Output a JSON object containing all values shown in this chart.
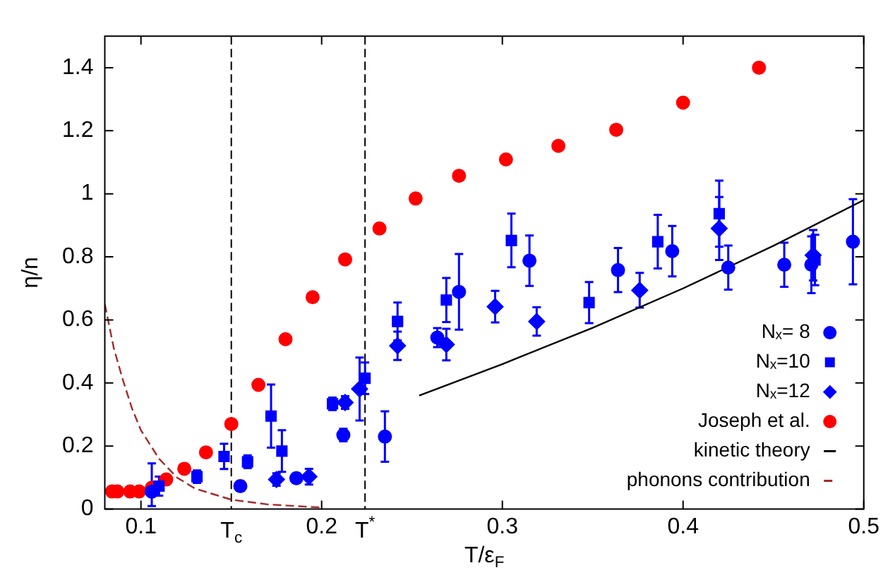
{
  "chart_data": {
    "type": "scatter",
    "xlabel": "T/ε$_{F}$",
    "ylabel": "η/n",
    "xlim": [
      0.08,
      0.5
    ],
    "ylim": [
      0,
      1.5
    ],
    "xticks": [
      0.1,
      0.2,
      0.3,
      0.4,
      0.5
    ],
    "yticks": [
      0,
      0.2,
      0.4,
      0.6,
      0.8,
      1,
      1.2,
      1.4
    ],
    "grid": false,
    "legend": "bottom right",
    "series": [
      {
        "name": "Nₓ= 8",
        "marker": "circle",
        "color": "#0000ff",
        "x": [
          0.106,
          0.155,
          0.186,
          0.212,
          0.235,
          0.264,
          0.276,
          0.315,
          0.364,
          0.394,
          0.425,
          0.456,
          0.471,
          0.494
        ],
        "values": [
          0.055,
          0.073,
          0.098,
          0.235,
          0.23,
          0.544,
          0.689,
          0.788,
          0.758,
          0.818,
          0.766,
          0.775,
          0.775,
          0.848
        ],
        "errors": [
          [
            0.01,
            0.145
          ],
          0.015,
          0.015,
          0.02,
          0.08,
          0.03,
          0.12,
          0.08,
          0.07,
          0.08,
          0.07,
          0.07,
          0.09,
          0.135
        ]
      },
      {
        "name": "Nₓ=10",
        "marker": "square",
        "color": "#0000ff",
        "x": [
          0.11,
          0.131,
          0.146,
          0.159,
          0.172,
          0.178,
          0.206,
          0.224,
          0.242,
          0.269,
          0.305,
          0.348,
          0.386,
          0.42,
          0.473
        ],
        "values": [
          0.073,
          0.103,
          0.167,
          0.15,
          0.295,
          0.184,
          0.334,
          0.415,
          0.595,
          0.663,
          0.852,
          0.655,
          0.848,
          0.937,
          0.79
        ],
        "errors": [
          0.03,
          0.02,
          0.04,
          0.02,
          0.1,
          0.066,
          0.02,
          0.05,
          0.06,
          0.07,
          0.085,
          0.065,
          0.085,
          0.105,
          0.08
        ]
      },
      {
        "name": "Nₓ=12",
        "marker": "diamond",
        "color": "#0000ff",
        "x": [
          0.175,
          0.193,
          0.213,
          0.221,
          0.242,
          0.269,
          0.296,
          0.319,
          0.376,
          0.42,
          0.472
        ],
        "values": [
          0.094,
          0.103,
          0.338,
          0.381,
          0.518,
          0.522,
          0.642,
          0.595,
          0.694,
          0.89,
          0.805
        ],
        "errors": [
          0.02,
          0.025,
          0.02,
          0.1,
          0.045,
          0.05,
          0.05,
          0.045,
          0.055,
          0.1,
          0.08
        ]
      },
      {
        "name": "Joseph et al.",
        "marker": "circle",
        "color": "#ff0000",
        "x": [
          0.084,
          0.087,
          0.094,
          0.099,
          0.106,
          0.114,
          0.124,
          0.136,
          0.15,
          0.165,
          0.18,
          0.195,
          0.213,
          0.232,
          0.252,
          0.276,
          0.302,
          0.331,
          0.363,
          0.4,
          0.442
        ],
        "values": [
          0.056,
          0.056,
          0.056,
          0.056,
          0.068,
          0.094,
          0.128,
          0.18,
          0.27,
          0.394,
          0.539,
          0.672,
          0.792,
          0.89,
          0.985,
          1.057,
          1.109,
          1.152,
          1.203,
          1.289,
          1.4
        ]
      },
      {
        "name": "kinetic theory",
        "type": "line",
        "marker": "none",
        "line_style": "solid",
        "color": "#000000",
        "x": [
          0.254,
          0.3,
          0.35,
          0.4,
          0.45,
          0.5
        ],
        "values": [
          0.36,
          0.46,
          0.575,
          0.7,
          0.835,
          0.98
        ]
      },
      {
        "name": "phonons contribution",
        "type": "line",
        "marker": "none",
        "line_style": "dashed",
        "color": "#a52a2a",
        "x": [
          0.08,
          0.085,
          0.09,
          0.095,
          0.1,
          0.11,
          0.12,
          0.13,
          0.15,
          0.17,
          0.2
        ],
        "values": [
          0.65,
          0.51,
          0.41,
          0.32,
          0.25,
          0.16,
          0.1,
          0.065,
          0.03,
          0.015,
          0.005
        ]
      }
    ],
    "ref_lines": [
      {
        "axis": "x",
        "value": 0.15,
        "label": "T$_{c}$",
        "color": "#000000",
        "line_style": "dashed"
      },
      {
        "axis": "x",
        "value": 0.224,
        "label": "T$^{*}$",
        "color": "#000000",
        "line_style": "dashed"
      }
    ]
  }
}
